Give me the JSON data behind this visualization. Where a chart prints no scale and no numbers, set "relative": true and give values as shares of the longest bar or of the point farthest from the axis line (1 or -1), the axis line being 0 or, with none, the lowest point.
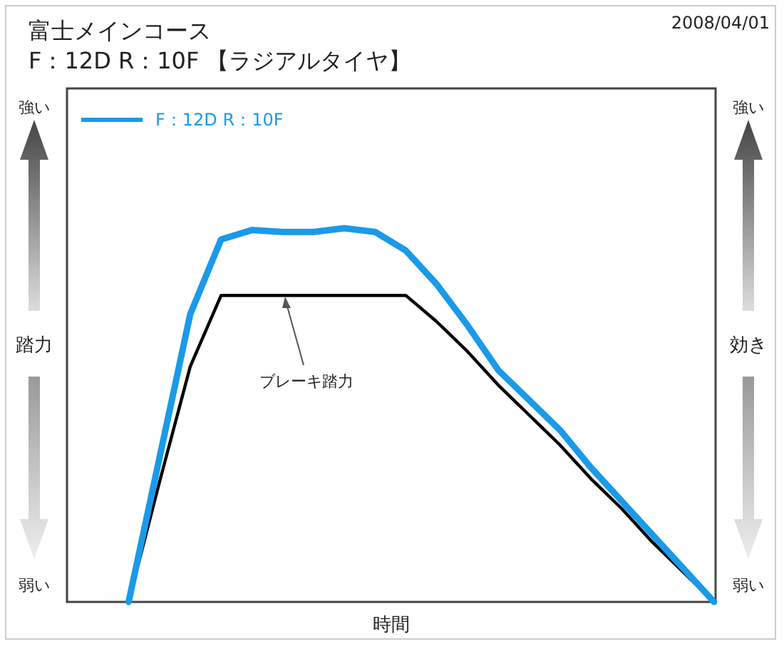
{
  "chart_data": {
    "type": "line",
    "title": "富士メインコース",
    "subtitle": "F：12D R：10F 【ラジアルタイヤ】",
    "xlabel": "時間",
    "ylabel": "踏力",
    "y2label": "効き",
    "relative": true,
    "legend": "top left",
    "marker": "none",
    "line_style": "solid",
    "annotations": [
      "2008/04/01",
      "強い",
      "弱い",
      "強い",
      "弱い",
      "ブレーキ踏力"
    ],
    "categories": [
      null,
      null,
      null,
      null,
      null,
      null,
      null,
      null,
      null,
      null,
      null,
      null,
      null,
      null,
      null,
      null,
      null,
      null,
      null,
      null,
      null,
      null
    ],
    "series": [
      {
        "name": "F：12D R：10F",
        "color": "#1a9ae8",
        "values": [
          null,
          null,
          0,
          0.385,
          0.77,
          0.97,
          0.995,
          0.99,
          0.99,
          1.0,
          0.99,
          0.94,
          0.85,
          0.74,
          0.62,
          0.54,
          0.46,
          0.36,
          0.27,
          0.18,
          0.09,
          0
        ]
      },
      {
        "color": "#000000",
        "values": [
          null,
          null,
          0,
          0.32,
          0.63,
          0.82,
          0.82,
          0.82,
          0.82,
          0.82,
          0.82,
          0.82,
          0.75,
          0.67,
          0.58,
          0.5,
          0.42,
          0.33,
          0.25,
          0.16,
          0.08,
          0
        ]
      }
    ]
  }
}
